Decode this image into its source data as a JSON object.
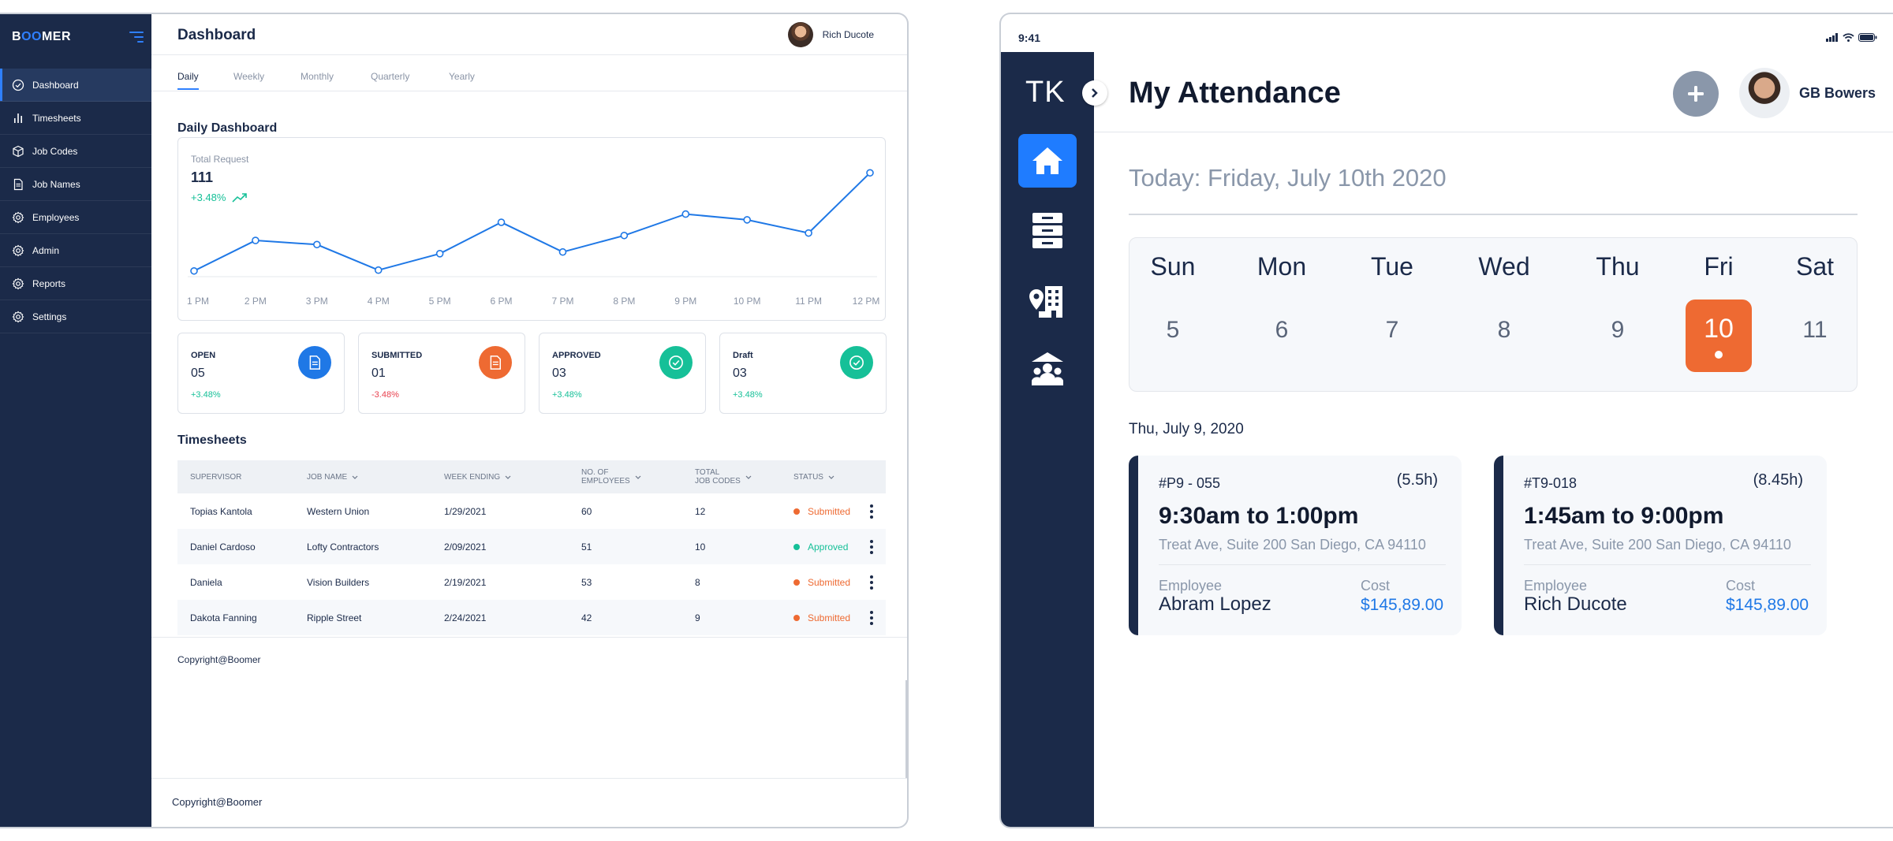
{
  "dashboard": {
    "logo": {
      "prefix": "B",
      "highlight": "OO",
      "suffix": "MER"
    },
    "sidebar": {
      "items": [
        {
          "label": "Dashboard",
          "icon": "check-circle-icon",
          "active": true
        },
        {
          "label": "Timesheets",
          "icon": "bar-chart-icon"
        },
        {
          "label": "Job Codes",
          "icon": "box-icon"
        },
        {
          "label": "Job Names",
          "icon": "document-icon"
        },
        {
          "label": "Employees",
          "icon": "gear-icon"
        },
        {
          "label": "Admin",
          "icon": "gear-icon"
        },
        {
          "label": "Reports",
          "icon": "gear-icon"
        },
        {
          "label": "Settings",
          "icon": "gear-icon"
        }
      ]
    },
    "header": {
      "title": "Dashboard",
      "user_name": "Rich Ducote"
    },
    "tabs": [
      "Daily",
      "Weekly",
      "Monthly",
      "Quarterly",
      "Yearly"
    ],
    "active_tab": "Daily",
    "daily_title": "Daily Dashboard",
    "chart_summary": {
      "label": "Total Request",
      "total": "111",
      "change": "+3.48%"
    },
    "chart_data": {
      "type": "line",
      "categories": [
        "1 PM",
        "2 PM",
        "3 PM",
        "4 PM",
        "5 PM",
        "6 PM",
        "7 PM",
        "8 PM",
        "9 PM",
        "10 PM",
        "11 PM",
        "12 PM"
      ],
      "values": [
        5,
        42,
        37,
        6,
        26,
        64,
        28,
        48,
        74,
        67,
        51,
        124
      ],
      "ylim": [
        0,
        130
      ],
      "grid": false,
      "line_color": "#1f78e6"
    },
    "stats": [
      {
        "label": "OPEN",
        "value": "05",
        "change": "+3.48%",
        "change_color": "#16c098",
        "icon": "document-icon",
        "color": "#1f78e6"
      },
      {
        "label": "SUBMITTED",
        "value": "01",
        "change": "-3.48%",
        "change_color": "#e8414f",
        "icon": "document-icon",
        "color": "#ee6a32"
      },
      {
        "label": "APPROVED",
        "value": "03",
        "change": "+3.48%",
        "change_color": "#16c098",
        "icon": "check-circle-icon",
        "color": "#16c098"
      },
      {
        "label": "Draft",
        "value": "03",
        "change": "+3.48%",
        "change_color": "#16c098",
        "icon": "check-circle-icon",
        "color": "#16c098"
      }
    ],
    "timesheets_title": "Timesheets",
    "table": {
      "headers": {
        "supervisor": "SUPERVISOR",
        "job_name": "JOB NAME",
        "week_ending": "WEEK ENDING",
        "employees_1": "NO. OF",
        "employees_2": "EMPLOYEES",
        "codes_1": "TOTAL",
        "codes_2": "JOB CODES",
        "status": "STATUS"
      },
      "rows": [
        {
          "supervisor": "Topias Kantola",
          "job_name": "Western Union",
          "week_ending": "1/29/2021",
          "employees": "60",
          "codes": "12",
          "status": "Submitted",
          "status_color": "#ee6a32"
        },
        {
          "supervisor": "Daniel Cardoso",
          "job_name": "Lofty Contractors",
          "week_ending": "2/09/2021",
          "employees": "51",
          "codes": "10",
          "status": "Approved",
          "status_color": "#16c098"
        },
        {
          "supervisor": "Daniela",
          "job_name": "Vision Builders",
          "week_ending": "2/19/2021",
          "employees": "53",
          "codes": "8",
          "status": "Submitted",
          "status_color": "#ee6a32"
        },
        {
          "supervisor": "Dakota Fanning",
          "job_name": "Ripple Street",
          "week_ending": "2/24/2021",
          "employees": "42",
          "codes": "9",
          "status": "Submitted",
          "status_color": "#ee6a32"
        }
      ]
    },
    "table_footer": "Copyright@Boomer",
    "page_footer": "Copyright@Boomer"
  },
  "attendance": {
    "status_time": "9:41",
    "brand": "TK",
    "title": "My Attendance",
    "user_name": "GB Bowers",
    "today": "Today: Friday, July 10th 2020",
    "week_days": [
      "Sun",
      "Mon",
      "Tue",
      "Wed",
      "Thu",
      "Fri",
      "Sat"
    ],
    "week_dates": [
      "5",
      "6",
      "7",
      "8",
      "9",
      "10",
      "11"
    ],
    "selected_index": 5,
    "prev_date": "Thu, July 9, 2020",
    "shifts": [
      {
        "code": "#P9 - 055",
        "hours": "(5.5h)",
        "time": "9:30am to 1:00pm",
        "address": "Treat Ave, Suite 200 San Diego, CA 94110",
        "employee_label": "Employee",
        "employee": "Abram Lopez",
        "cost_label": "Cost",
        "cost": "$145,89.00"
      },
      {
        "code": "#T9-018",
        "hours": "(8.45h)",
        "time": "1:45am to 9:00pm",
        "address": "Treat Ave, Suite 200 San Diego, CA 94110",
        "employee_label": "Employee",
        "employee": "Rich Ducote",
        "cost_label": "Cost",
        "cost": "$145,89.00"
      }
    ],
    "accent": "#1f7cff",
    "cost_color": "#1f78e6"
  }
}
